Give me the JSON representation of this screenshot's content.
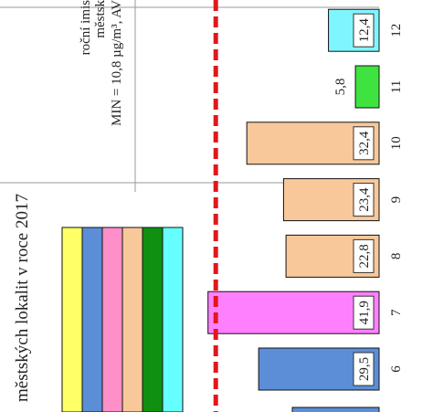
{
  "chart_data": {
    "type": "bar",
    "orientation": "rotated-90-cw",
    "title": "městských lokalit v roce 2017",
    "note_lines": [
      "roční imis",
      "městsk",
      "MIN = 10,8 µg/m³, AV"
    ],
    "categories": [
      "6",
      "7",
      "8",
      "9",
      "10",
      "11",
      "12"
    ],
    "values": [
      29.5,
      41.9,
      22.8,
      23.4,
      32.4,
      5.8,
      12.4
    ],
    "value_labels": [
      "29,5",
      "41,9",
      "22,8",
      "23,4",
      "32,4",
      "5,8",
      "12,4"
    ],
    "bar_colors": [
      "#5b8ed6",
      "#ff80ff",
      "#f8c89a",
      "#f8c89a",
      "#f8c89a",
      "#3fe33f",
      "#7ff6ff"
    ],
    "limit_value": 40,
    "limit_color": "#e0181a",
    "legend_swatch_colors": [
      "#ffff66",
      "#5b8ed6",
      "#ff8fc8",
      "#f8c89a",
      "#109010",
      "#66ffff"
    ],
    "grid": true
  }
}
